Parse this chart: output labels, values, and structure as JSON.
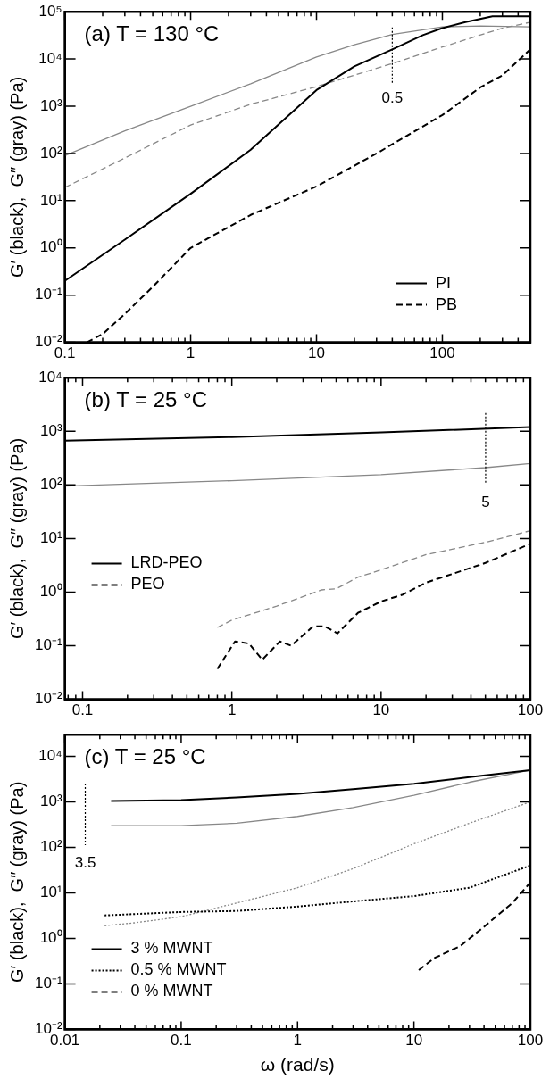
{
  "chart_data": [
    {
      "type": "line",
      "title": "(a) T = 130 °C",
      "ylabel": "G′ (black),  G″ (gray) (Pa)",
      "log": "xy",
      "grid": false,
      "legend": "bottom right",
      "marker": "none",
      "xlim": [
        0.1,
        500
      ],
      "ylim": [
        0.01,
        100000
      ],
      "xticks": [
        0.1,
        {
          "value": 0.2,
          "label": null
        },
        {
          "value": 0.3,
          "label": null
        },
        {
          "value": 0.4,
          "label": null
        },
        {
          "value": 0.5,
          "label": null
        },
        {
          "value": 0.6,
          "label": null
        },
        {
          "value": 0.7,
          "label": null
        },
        {
          "value": 0.8,
          "label": null
        },
        {
          "value": 0.9,
          "label": null
        },
        1,
        {
          "value": 2,
          "label": null
        },
        {
          "value": 3,
          "label": null
        },
        {
          "value": 4,
          "label": null
        },
        {
          "value": 5,
          "label": null
        },
        {
          "value": 6,
          "label": null
        },
        {
          "value": 7,
          "label": null
        },
        {
          "value": 8,
          "label": null
        },
        {
          "value": 9,
          "label": null
        },
        10,
        {
          "value": 20,
          "label": null
        },
        {
          "value": 30,
          "label": null
        },
        {
          "value": 40,
          "label": null
        },
        {
          "value": 50,
          "label": null
        },
        {
          "value": 60,
          "label": null
        },
        {
          "value": 70,
          "label": null
        },
        {
          "value": 80,
          "label": null
        },
        {
          "value": 90,
          "label": null
        },
        100,
        {
          "value": 200,
          "label": null
        },
        {
          "value": 300,
          "label": null
        },
        {
          "value": 400,
          "label": null
        },
        {
          "value": 500,
          "label": null
        }
      ],
      "yticks": [
        {
          "value": 0.01,
          "label": "10⁻²"
        },
        {
          "value": 0.1,
          "label": "10⁻¹"
        },
        {
          "value": 1,
          "label": "10⁰"
        },
        {
          "value": 10,
          "label": "10¹"
        },
        {
          "value": 100,
          "label": "10²"
        },
        {
          "value": 1000,
          "label": "10³"
        },
        {
          "value": 10000,
          "label": "10⁴"
        },
        {
          "value": 100000,
          "label": "10⁵"
        }
      ],
      "annotations": [
        {
          "text": "0.5",
          "x": 40,
          "y": 33000
        }
      ],
      "series": [
        {
          "name": "PI",
          "color": "#000000",
          "line_style": "solid",
          "x": [
            0.1,
            0.3,
            1,
            3,
            10,
            20,
            40,
            70,
            100,
            150,
            250,
            500
          ],
          "values": [
            0.2,
            1.5,
            14,
            120,
            2200,
            7000,
            16000,
            32000,
            45000,
            60000,
            80000,
            80000
          ]
        },
        {
          "color": "#888888",
          "line_style": "solid",
          "x": [
            0.1,
            0.3,
            1,
            3,
            10,
            20,
            40,
            100,
            200,
            500
          ],
          "values": [
            90,
            300,
            1000,
            3000,
            11000,
            20000,
            33000,
            48000,
            50000,
            48000
          ]
        },
        {
          "name": "PB",
          "color": "#000000",
          "line_style": "dashed",
          "x": [
            0.15,
            0.2,
            0.3,
            0.5,
            1,
            3,
            10,
            30,
            100,
            200,
            300,
            500
          ],
          "values": [
            0.01,
            0.015,
            0.04,
            0.15,
            1,
            5,
            20,
            100,
            650,
            2500,
            4500,
            16000
          ]
        },
        {
          "color": "#888888",
          "line_style": "dashed",
          "x": [
            0.1,
            0.3,
            1,
            3,
            10,
            40,
            100,
            300,
            500
          ],
          "values": [
            19,
            80,
            400,
            1100,
            2600,
            8000,
            18000,
            45000,
            60000
          ]
        }
      ]
    },
    {
      "type": "line",
      "title": "(b) T = 25 °C",
      "ylabel": "G′ (black),  G″ (gray) (Pa)",
      "log": "xy",
      "grid": false,
      "legend": "left",
      "marker": "none",
      "xlim": [
        0.076,
        100
      ],
      "ylim": [
        0.01,
        10000
      ],
      "xticks": [
        {
          "value": 0.08,
          "label": null
        },
        {
          "value": 0.09,
          "label": null
        },
        0.1,
        {
          "value": 0.2,
          "label": null
        },
        {
          "value": 0.3,
          "label": null
        },
        {
          "value": 0.4,
          "label": null
        },
        {
          "value": 0.5,
          "label": null
        },
        {
          "value": 0.6,
          "label": null
        },
        {
          "value": 0.7,
          "label": null
        },
        {
          "value": 0.8,
          "label": null
        },
        {
          "value": 0.9,
          "label": null
        },
        1,
        {
          "value": 2,
          "label": null
        },
        {
          "value": 3,
          "label": null
        },
        {
          "value": 4,
          "label": null
        },
        {
          "value": 5,
          "label": null
        },
        {
          "value": 6,
          "label": null
        },
        {
          "value": 7,
          "label": null
        },
        {
          "value": 8,
          "label": null
        },
        {
          "value": 9,
          "label": null
        },
        10,
        {
          "value": 20,
          "label": null
        },
        {
          "value": 30,
          "label": null
        },
        {
          "value": 40,
          "label": null
        },
        {
          "value": 50,
          "label": null
        },
        {
          "value": 60,
          "label": null
        },
        {
          "value": 70,
          "label": null
        },
        {
          "value": 80,
          "label": null
        },
        {
          "value": 90,
          "label": null
        },
        100
      ],
      "yticks": [
        {
          "value": 0.01,
          "label": "10⁻²"
        },
        {
          "value": 0.1,
          "label": "10⁻¹"
        },
        {
          "value": 1,
          "label": "10⁰"
        },
        {
          "value": 10,
          "label": "10¹"
        },
        {
          "value": 100,
          "label": "10²"
        },
        {
          "value": 1000,
          "label": "10³"
        },
        {
          "value": 10000,
          "label": "10⁴"
        }
      ],
      "annotations": [
        "5"
      ],
      "series": [
        {
          "name": "LRD-PEO",
          "color": "#000000",
          "line_style": "solid",
          "x": [
            0.076,
            1,
            10,
            100
          ],
          "values": [
            670,
            780,
            950,
            1200
          ]
        },
        {
          "color": "#888888",
          "line_style": "solid",
          "x": [
            0.076,
            1,
            10,
            50,
            100
          ],
          "values": [
            95,
            120,
            155,
            210,
            250
          ]
        },
        {
          "name": "PEO",
          "color": "#000000",
          "line_style": "dashed",
          "x": [
            0.8,
            1.05,
            1.3,
            1.6,
            2.1,
            2.5,
            3.5,
            4.2,
            5.1,
            7,
            10,
            14,
            20,
            50,
            100
          ],
          "values": [
            0.037,
            0.12,
            0.11,
            0.055,
            0.12,
            0.1,
            0.23,
            0.23,
            0.17,
            0.41,
            0.67,
            0.9,
            1.5,
            3.5,
            8
          ]
        },
        {
          "color": "#888888",
          "line_style": "dashed",
          "x": [
            0.8,
            1,
            2,
            4,
            5,
            7,
            10,
            20,
            50,
            100
          ],
          "values": [
            0.22,
            0.3,
            0.55,
            1.1,
            1.15,
            1.9,
            2.6,
            5,
            8.5,
            14
          ]
        }
      ]
    },
    {
      "type": "line",
      "title": "(c) T = 25 °C",
      "xlabel": "ω (rad/s)",
      "ylabel": "G′ (black),  G″ (gray) (Pa)",
      "log": "xy",
      "grid": false,
      "legend": "bottom left",
      "marker": "none",
      "xlim": [
        0.01,
        100
      ],
      "ylim": [
        0.01,
        30000
      ],
      "xticks": [
        0.01,
        {
          "value": 0.02,
          "label": null
        },
        {
          "value": 0.03,
          "label": null
        },
        {
          "value": 0.04,
          "label": null
        },
        {
          "value": 0.05,
          "label": null
        },
        {
          "value": 0.06,
          "label": null
        },
        {
          "value": 0.07,
          "label": null
        },
        {
          "value": 0.08,
          "label": null
        },
        {
          "value": 0.09,
          "label": null
        },
        0.1,
        {
          "value": 0.2,
          "label": null
        },
        {
          "value": 0.3,
          "label": null
        },
        {
          "value": 0.4,
          "label": null
        },
        {
          "value": 0.5,
          "label": null
        },
        {
          "value": 0.6,
          "label": null
        },
        {
          "value": 0.7,
          "label": null
        },
        {
          "value": 0.8,
          "label": null
        },
        {
          "value": 0.9,
          "label": null
        },
        1,
        {
          "value": 2,
          "label": null
        },
        {
          "value": 3,
          "label": null
        },
        {
          "value": 4,
          "label": null
        },
        {
          "value": 5,
          "label": null
        },
        {
          "value": 6,
          "label": null
        },
        {
          "value": 7,
          "label": null
        },
        {
          "value": 8,
          "label": null
        },
        {
          "value": 9,
          "label": null
        },
        10,
        {
          "value": 20,
          "label": null
        },
        {
          "value": 30,
          "label": null
        },
        {
          "value": 40,
          "label": null
        },
        {
          "value": 50,
          "label": null
        },
        {
          "value": 60,
          "label": null
        },
        {
          "value": 70,
          "label": null
        },
        {
          "value": 80,
          "label": null
        },
        {
          "value": 90,
          "label": null
        },
        100
      ],
      "yticks": [
        {
          "value": 0.01,
          "label": "10⁻²"
        },
        {
          "value": 0.1,
          "label": "10⁻¹"
        },
        {
          "value": 1,
          "label": "10⁰"
        },
        {
          "value": 10,
          "label": "10¹"
        },
        {
          "value": 100,
          "label": "10²"
        },
        {
          "value": 1000,
          "label": "10³"
        },
        {
          "value": 10000,
          "label": "10⁴"
        }
      ],
      "annotations": [
        "3.5"
      ],
      "series": [
        {
          "name": "3 % MWNT",
          "color": "#000000",
          "line_style": "solid",
          "x": [
            0.025,
            0.1,
            0.3,
            1,
            3,
            10,
            30,
            100
          ],
          "values": [
            1050,
            1100,
            1250,
            1500,
            1900,
            2500,
            3500,
            5000
          ]
        },
        {
          "color": "#888888",
          "line_style": "solid",
          "x": [
            0.025,
            0.1,
            0.3,
            1,
            3,
            10,
            30,
            100
          ],
          "values": [
            300,
            300,
            340,
            480,
            750,
            1400,
            2700,
            5000
          ]
        },
        {
          "name": "0.5 % MWNT",
          "color": "#000000",
          "line_style": "dotted",
          "x": [
            0.022,
            0.1,
            0.3,
            1,
            3,
            10,
            30,
            100
          ],
          "values": [
            3.2,
            3.8,
            4,
            5,
            6.5,
            8.5,
            13,
            40
          ]
        },
        {
          "color": "#888888",
          "line_style": "dotted",
          "x": [
            0.022,
            0.04,
            0.1,
            0.3,
            1,
            3,
            10,
            30,
            100
          ],
          "values": [
            1.9,
            2.2,
            3,
            6,
            13,
            34,
            120,
            340,
            1000
          ]
        },
        {
          "name": "0 % MWNT",
          "color": "#000000",
          "line_style": "dashed",
          "x": [
            11,
            15,
            25,
            40,
            70,
            100
          ],
          "values": [
            0.2,
            0.37,
            0.68,
            1.8,
            6,
            17
          ]
        }
      ]
    }
  ]
}
